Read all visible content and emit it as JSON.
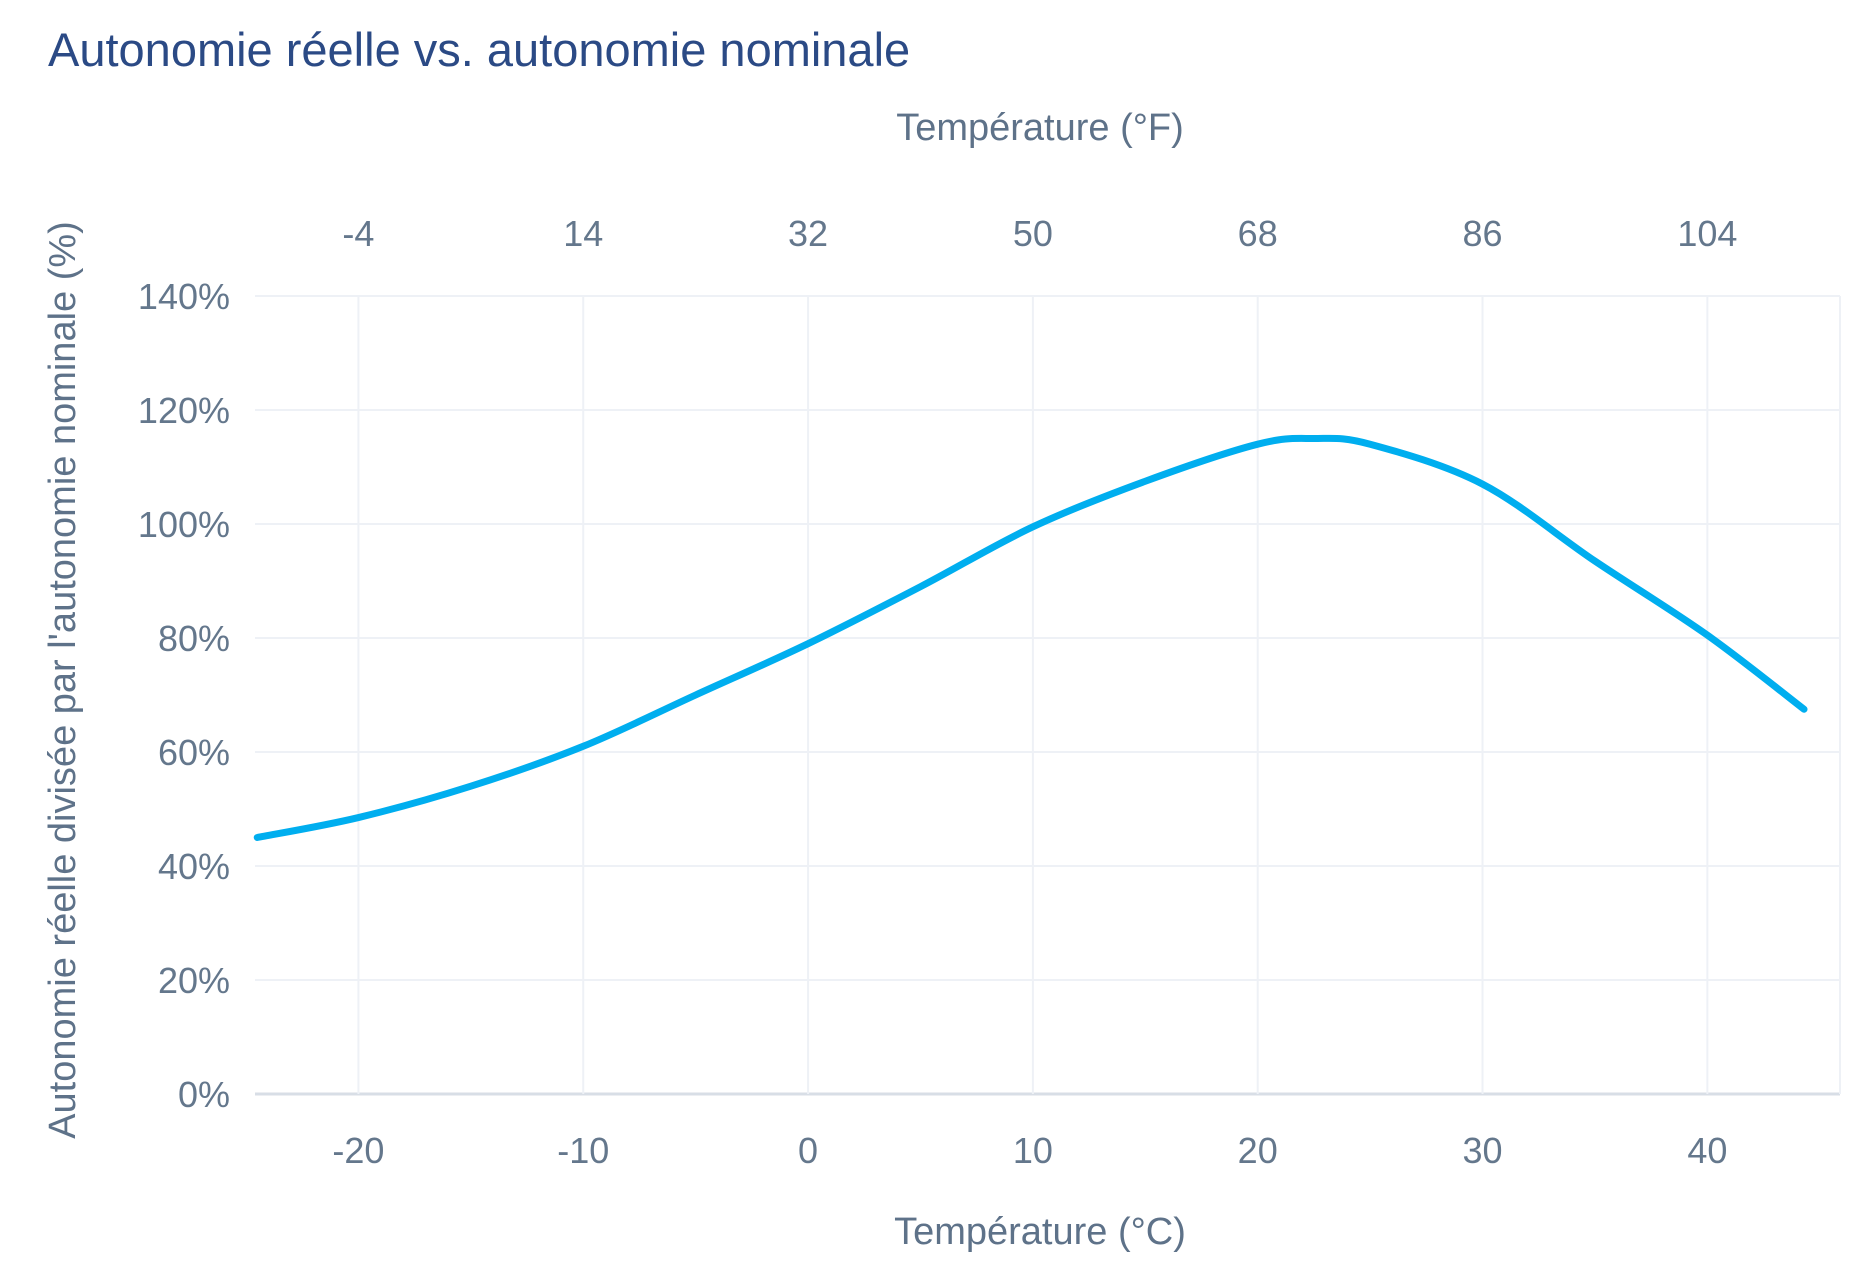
{
  "title": "Autonomie réelle vs. autonomie nominale",
  "chart_data": {
    "type": "line",
    "title": "Autonomie réelle vs. autonomie nominale",
    "x_top_axis": {
      "label": "Température (°F)",
      "ticks": [
        {
          "label": "-4",
          "c": -20
        },
        {
          "label": "14",
          "c": -10
        },
        {
          "label": "32",
          "c": 0
        },
        {
          "label": "50",
          "c": 10
        },
        {
          "label": "68",
          "c": 20
        },
        {
          "label": "86",
          "c": 30
        },
        {
          "label": "104",
          "c": 40
        }
      ]
    },
    "x_bottom_axis": {
      "label": "Température (°C)",
      "ticks": [
        {
          "label": "-20",
          "c": -20
        },
        {
          "label": "-10",
          "c": -10
        },
        {
          "label": "0",
          "c": 0
        },
        {
          "label": "10",
          "c": 10
        },
        {
          "label": "20",
          "c": 20
        },
        {
          "label": "30",
          "c": 30
        },
        {
          "label": "40",
          "c": 40
        }
      ]
    },
    "y_axis": {
      "label": "Autonomie réelle divisée par l'autonomie nominale (%)",
      "range": [
        0,
        140
      ],
      "ticks": [
        {
          "label": "0%",
          "v": 0
        },
        {
          "label": "20%",
          "v": 20
        },
        {
          "label": "40%",
          "v": 40
        },
        {
          "label": "60%",
          "v": 60
        },
        {
          "label": "80%",
          "v": 80
        },
        {
          "label": "100%",
          "v": 100
        },
        {
          "label": "120%",
          "v": 120
        },
        {
          "label": "140%",
          "v": 140
        }
      ]
    },
    "x_range": [
      -24.6,
      45.9
    ],
    "grid": true,
    "legend": "none",
    "series": [
      {
        "name": "autonomie-relative",
        "color": "#00AEEF",
        "points": [
          [
            -24.5,
            45.0
          ],
          [
            -20.0,
            48.5
          ],
          [
            -15.0,
            54.0
          ],
          [
            -10.0,
            61.0
          ],
          [
            -5.0,
            70.0
          ],
          [
            0.0,
            79.0
          ],
          [
            5.0,
            89.0
          ],
          [
            10.0,
            99.5
          ],
          [
            15.0,
            107.5
          ],
          [
            20.0,
            114.0
          ],
          [
            22.5,
            115.0
          ],
          [
            25.0,
            114.0
          ],
          [
            30.0,
            107.0
          ],
          [
            35.0,
            93.5
          ],
          [
            40.0,
            80.5
          ],
          [
            44.3,
            67.5
          ]
        ]
      }
    ],
    "colors": {
      "title": "#2B4A85",
      "axis_text": "#5E7289",
      "tick_text": "#64778C",
      "gridline": "#EEF1F6",
      "zero_line": "#D8DEE6",
      "line": "#00AEEF",
      "background": "#FFFFFF"
    }
  }
}
